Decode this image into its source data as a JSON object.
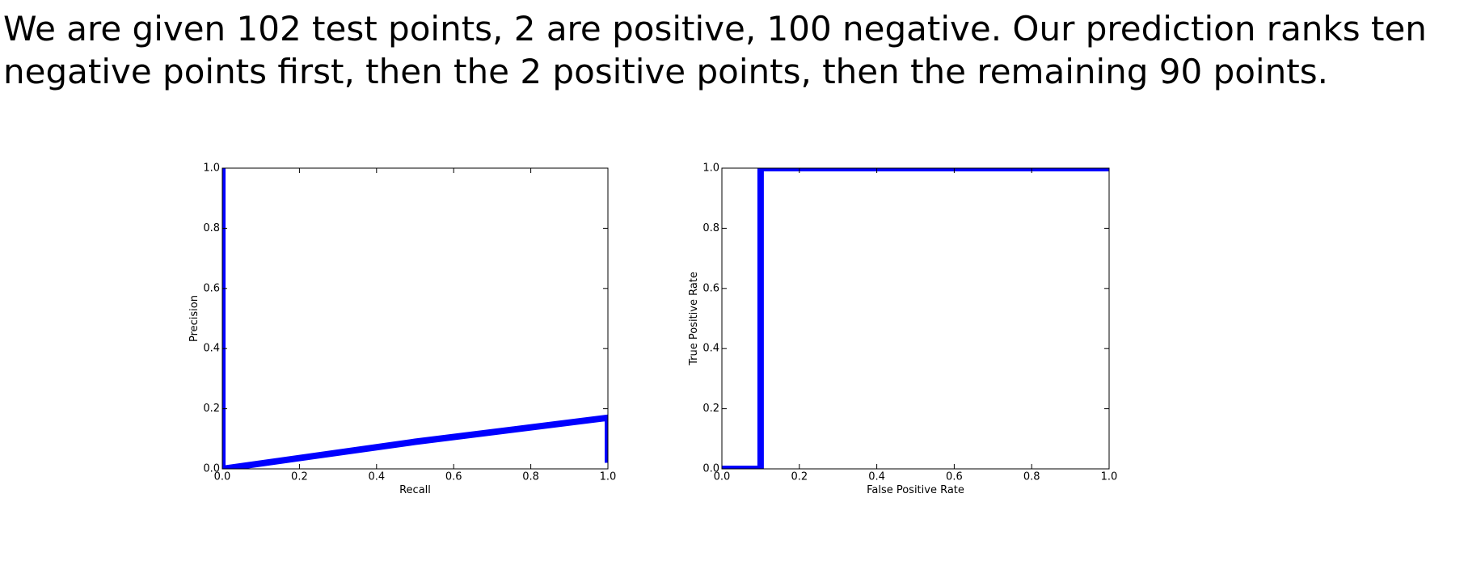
{
  "text": [
    "We are given 102 test points, 2 are positive, 100 negative. Our prediction ranks ten",
    "negative points first, then the 2 positive points, then the remaining 90 points."
  ],
  "chart_data": [
    {
      "type": "line",
      "xlabel": "Recall",
      "ylabel": "Precision",
      "x": [
        0,
        0,
        0.5,
        1,
        1
      ],
      "values": [
        1,
        0,
        0.09,
        0.17,
        0.02
      ],
      "color": "#0000ff",
      "xlim": [
        0,
        1
      ],
      "ylim": [
        0,
        1
      ],
      "xticks": [
        {
          "value": 0,
          "label": "0.0"
        },
        0.2,
        0.4,
        0.6,
        0.8,
        {
          "value": 1,
          "label": "1.0"
        }
      ],
      "yticks": [
        {
          "value": 0,
          "label": "0.0"
        },
        0.2,
        0.4,
        0.6,
        0.8,
        {
          "value": 1,
          "label": "1.0"
        }
      ]
    },
    {
      "type": "line",
      "xlabel": "False Positive Rate",
      "ylabel": "True Positive Rate",
      "x": [
        0,
        0.1,
        0.1,
        1
      ],
      "values": [
        0,
        0,
        1,
        1
      ],
      "color": "#0000ff",
      "xlim": [
        0,
        1
      ],
      "ylim": [
        0,
        1
      ],
      "xticks": [
        {
          "value": 0,
          "label": "0.0"
        },
        0.2,
        0.4,
        0.6,
        0.8,
        {
          "value": 1,
          "label": "1.0"
        }
      ],
      "yticks": [
        {
          "value": 0,
          "label": "0.0"
        },
        0.2,
        0.4,
        0.6,
        0.8,
        {
          "value": 1,
          "label": "1.0"
        }
      ]
    }
  ]
}
